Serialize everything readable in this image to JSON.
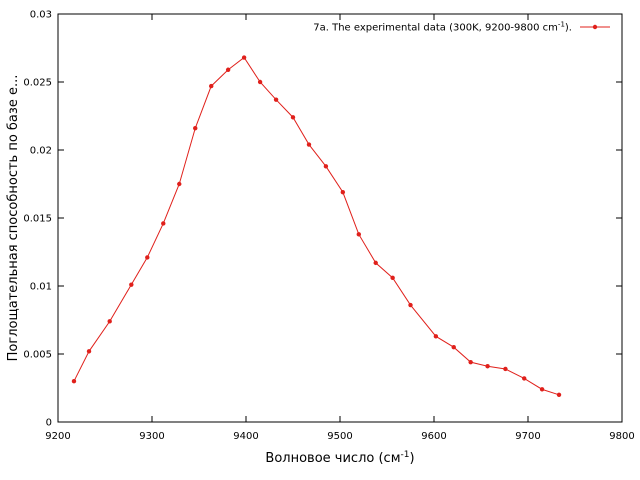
{
  "chart_data": {
    "type": "line",
    "title": "",
    "xlabel": "Волновое число (см",
    "xlabel_sup": "-1",
    "xlabel_end": ")",
    "ylabel": "Поглощательная способность по базе е...",
    "xlim": [
      9200,
      9800
    ],
    "ylim": [
      0,
      0.03
    ],
    "xticks": [
      "9200",
      "9300",
      "9400",
      "9500",
      "9600",
      "9700",
      "9800"
    ],
    "yticks": [
      "0",
      "0.005",
      "0.01",
      "0.015",
      "0.02",
      "0.025",
      "0.03"
    ],
    "grid": false,
    "legend_position": "top-right",
    "series": [
      {
        "name": "7a. The experimental data (300K, 9200-9800 cm",
        "name_sup": "-1",
        "name_end": ").",
        "color": "#e0201b",
        "x": [
          9217,
          9233,
          9255,
          9278,
          9295,
          9312,
          9329,
          9346,
          9363,
          9381,
          9398,
          9415,
          9432,
          9450,
          9467,
          9485,
          9503,
          9520,
          9538,
          9556,
          9575,
          9602,
          9621,
          9639,
          9657,
          9676,
          9696,
          9715,
          9733
        ],
        "y": [
          0.003,
          0.0052,
          0.0074,
          0.0101,
          0.0121,
          0.0146,
          0.0175,
          0.0216,
          0.0247,
          0.0259,
          0.0268,
          0.025,
          0.0237,
          0.0224,
          0.0204,
          0.0188,
          0.0169,
          0.0138,
          0.0117,
          0.0106,
          0.0086,
          0.0063,
          0.0055,
          0.0044,
          0.0041,
          0.0039,
          0.0032,
          0.0024,
          0.002
        ]
      }
    ]
  }
}
